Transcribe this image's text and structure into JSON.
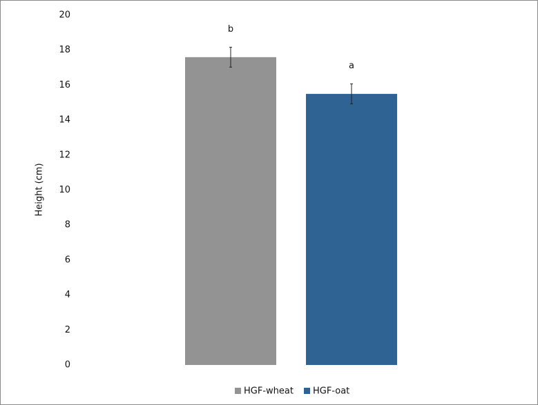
{
  "chart_data": {
    "type": "bar",
    "y_label": "Height (cm)",
    "ylim": [
      0,
      20
    ],
    "yticks": [
      0,
      2,
      4,
      6,
      8,
      10,
      12,
      14,
      16,
      18,
      20
    ],
    "grid": false,
    "legend": "bottom",
    "series": [
      {
        "name": "HGF-wheat",
        "color": "#939393",
        "values": [
          17.6
        ],
        "errors": [
          0.57
        ],
        "annotations": [
          "b"
        ]
      },
      {
        "name": "HGF-oat",
        "color": "#2e6394",
        "values": [
          15.5
        ],
        "errors": [
          0.57
        ],
        "annotations": [
          "a"
        ]
      }
    ]
  }
}
